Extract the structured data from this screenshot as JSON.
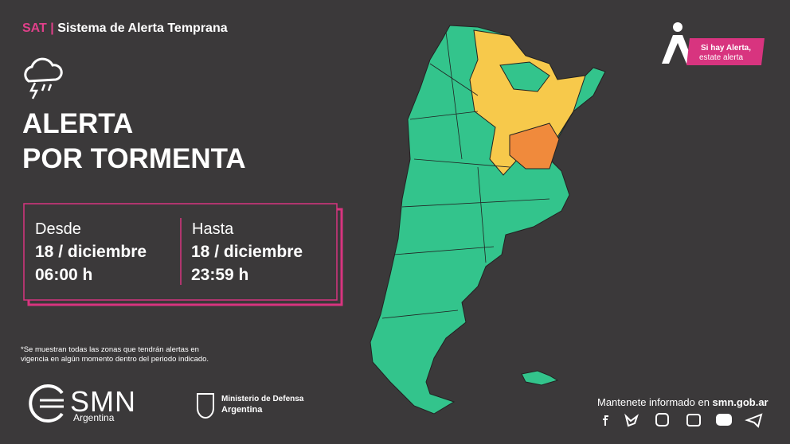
{
  "header": {
    "tag": "SAT",
    "separator": "|",
    "title": "Sistema de Alerta Temprana"
  },
  "alert": {
    "line1": "ALERTA",
    "line2": "POR TORMENTA"
  },
  "period": {
    "from": {
      "label": "Desde",
      "date": "18 / diciembre",
      "time": "06:00 h"
    },
    "to": {
      "label": "Hasta",
      "date": "18 / diciembre",
      "time": "23:59 h"
    }
  },
  "footnote": [
    "*Se muestran todas las zonas que tendrán alertas en",
    "vigencia en algún momento dentro del periodo indicado."
  ],
  "badge": {
    "line1": "Si hay Alerta,",
    "line2": "estate alerta"
  },
  "logos": {
    "smn": "SMN",
    "smn_sub": "Argentina",
    "ministry": "Ministerio de Defensa",
    "ministry_sub": "Argentina"
  },
  "footer": {
    "text": "Mantenete informado en ",
    "link": "smn.gob.ar"
  }
}
